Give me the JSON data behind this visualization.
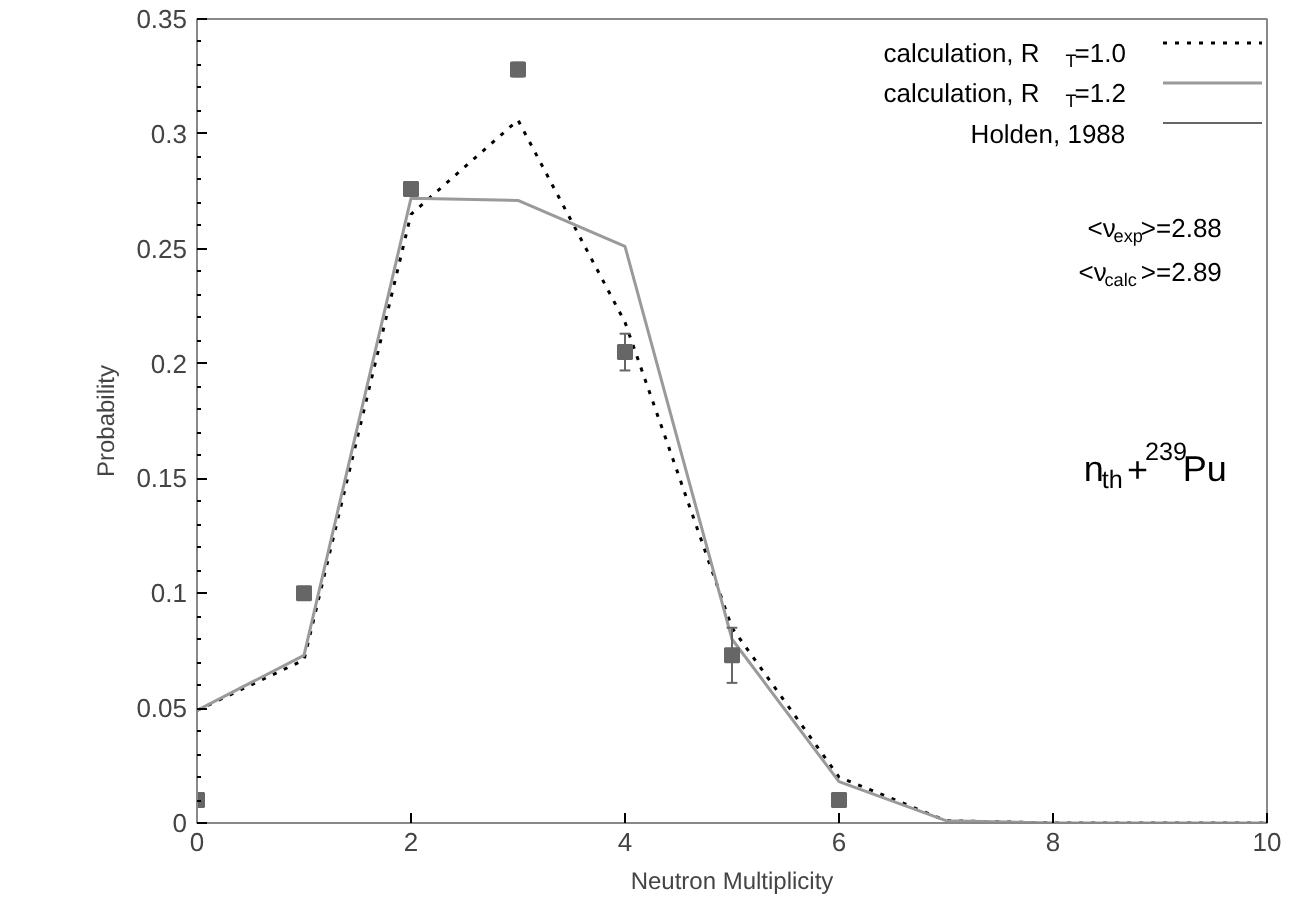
{
  "chart_data": {
    "type": "line",
    "xlabel": "Neutron Multiplicity",
    "ylabel": "Probability",
    "x": [
      0,
      1,
      2,
      3,
      4,
      5,
      6,
      7,
      8,
      9,
      10
    ],
    "series": [
      {
        "name": "calculation, R$_{T}$=1.0",
        "color": "#000000",
        "line_style": "dotted",
        "values": [
          0.049,
          0.071,
          0.265,
          0.306,
          0.218,
          0.085,
          0.02,
          0.001,
          0,
          0,
          0
        ]
      },
      {
        "name": "calculation, R$_{T}$=1.2",
        "color": "#9a9a9a",
        "line_style": "solid",
        "values": [
          0.049,
          0.073,
          0.272,
          0.271,
          0.251,
          0.08,
          0.018,
          0.001,
          0,
          0,
          0
        ]
      },
      {
        "name": "Holden, 1988",
        "type": "scatter",
        "marker": "square",
        "color": "#666666",
        "x": [
          0,
          1,
          2,
          3,
          4,
          5,
          6
        ],
        "values": [
          0.01,
          0.1,
          0.276,
          0.328,
          0.205,
          0.073,
          0.01
        ],
        "errors": [
          null,
          null,
          null,
          0.003,
          0.008,
          0.012,
          null
        ]
      }
    ],
    "xlim": [
      0,
      10
    ],
    "ylim": [
      0,
      0.35
    ],
    "xticks": [
      0,
      2,
      4,
      6,
      8,
      10
    ],
    "yticks": [
      0,
      0.05,
      0.1,
      0.15,
      0.2,
      0.25,
      0.3,
      0.35
    ],
    "grid": false,
    "legend": "top right",
    "annotations": [
      "<ν$_{exp}$>=2.88",
      "<ν$_{calc}$>=2.89",
      "n$_{th}$+$^{239}$Pu"
    ]
  }
}
